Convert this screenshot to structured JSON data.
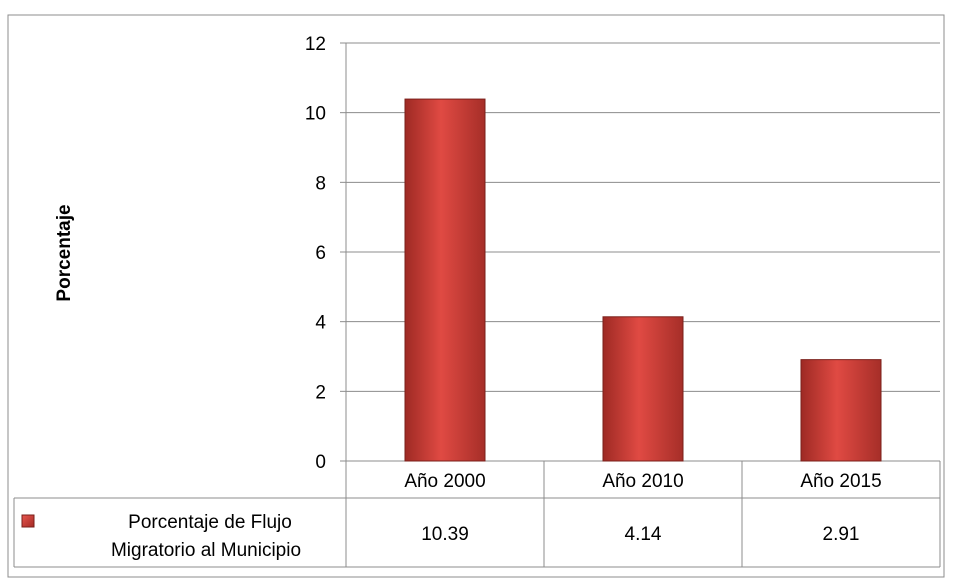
{
  "chart_data": {
    "type": "bar",
    "categories": [
      "Año 2000",
      "Año 2010",
      "Año 2015"
    ],
    "series": [
      {
        "name": "Porcentaje de Flujo Migratorio al Municipio",
        "legend_lines": [
          "Porcentaje de Flujo",
          "Migratorio al Municipio"
        ],
        "values": [
          10.39,
          4.14,
          2.91
        ],
        "value_labels": [
          "10.39",
          "4.14",
          "2.91"
        ],
        "color": "#c0392b"
      }
    ],
    "ylabel": "Porcentaje",
    "xlabel": "",
    "ylim": [
      0,
      12
    ],
    "yticks": [
      0,
      2,
      4,
      6,
      8,
      10,
      12
    ],
    "grid": true,
    "data_table": true
  }
}
